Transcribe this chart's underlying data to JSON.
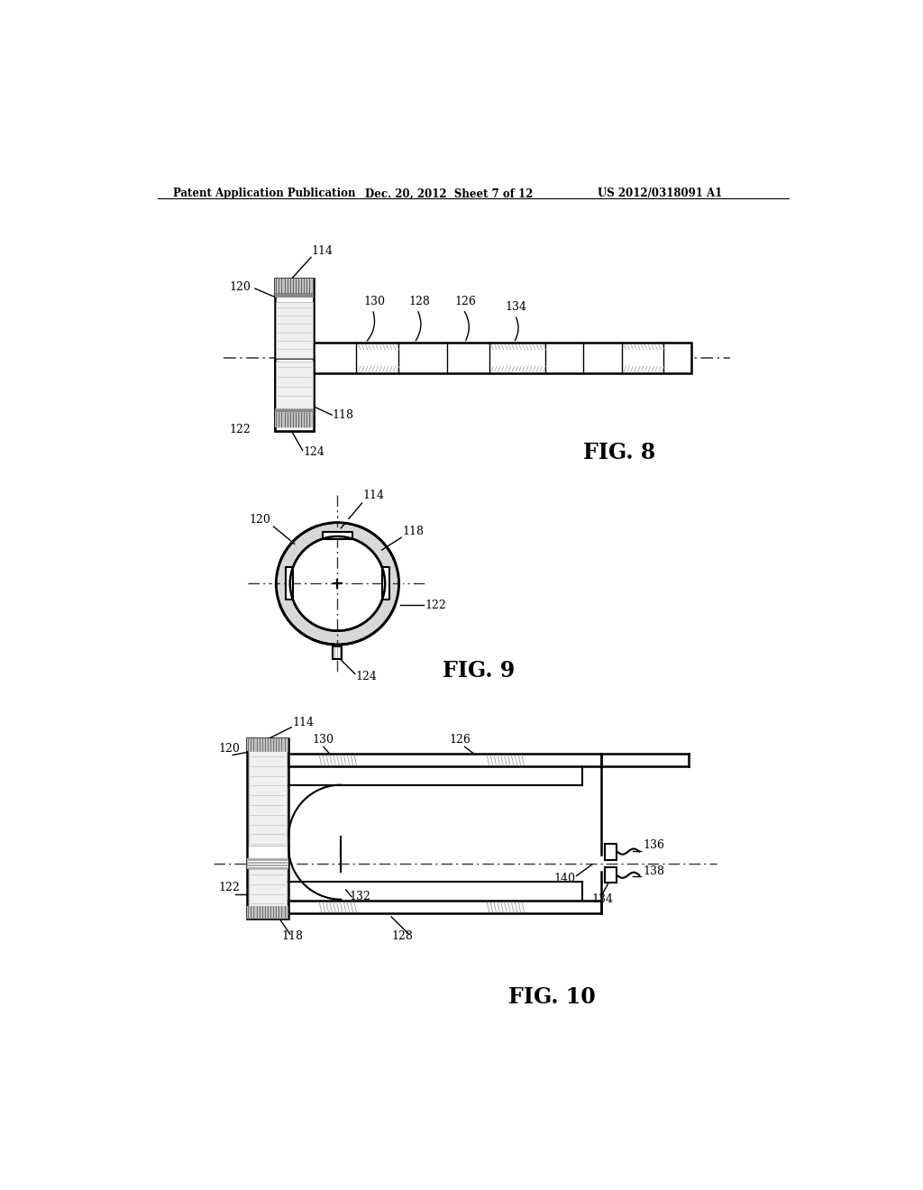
{
  "bg_color": "#ffffff",
  "header_left": "Patent Application Publication",
  "header_mid": "Dec. 20, 2012  Sheet 7 of 12",
  "header_right": "US 2012/0318091 A1",
  "fig8_label": "FIG. 8",
  "fig9_label": "FIG. 9",
  "fig10_label": "FIG. 10",
  "line_color": "#000000"
}
